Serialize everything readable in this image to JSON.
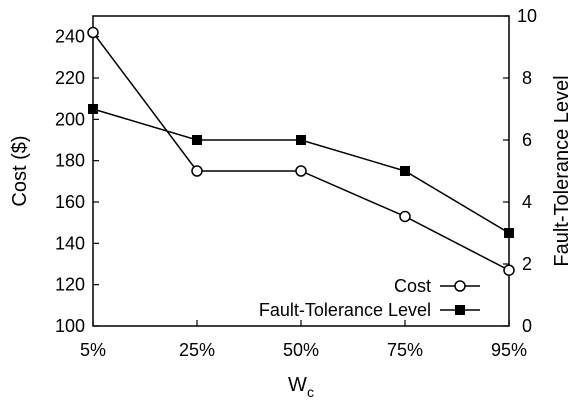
{
  "chart_data": {
    "type": "line",
    "x": [
      "5%",
      "25%",
      "50%",
      "75%",
      "95%"
    ],
    "xlabel": {
      "main": "W",
      "sub": "c"
    },
    "ylabel_left": "Cost ($)",
    "ylabel_right": "Fault-Tolerance Level",
    "ylim_left": [
      100,
      250
    ],
    "yticks_left": [
      100,
      120,
      140,
      160,
      180,
      200,
      220,
      240
    ],
    "ylim_right": [
      0,
      10
    ],
    "yticks_right": [
      0,
      2,
      4,
      6,
      8,
      10
    ],
    "series": [
      {
        "name": "Cost",
        "axis": "left",
        "marker": "open-circle",
        "values": [
          242,
          175,
          175,
          153,
          127
        ]
      },
      {
        "name": "Fault-Tolerance Level",
        "axis": "right",
        "marker": "filled-square",
        "values": [
          7,
          6,
          6,
          5,
          3
        ]
      }
    ],
    "legend_position": "bottom-right",
    "grid": false
  }
}
